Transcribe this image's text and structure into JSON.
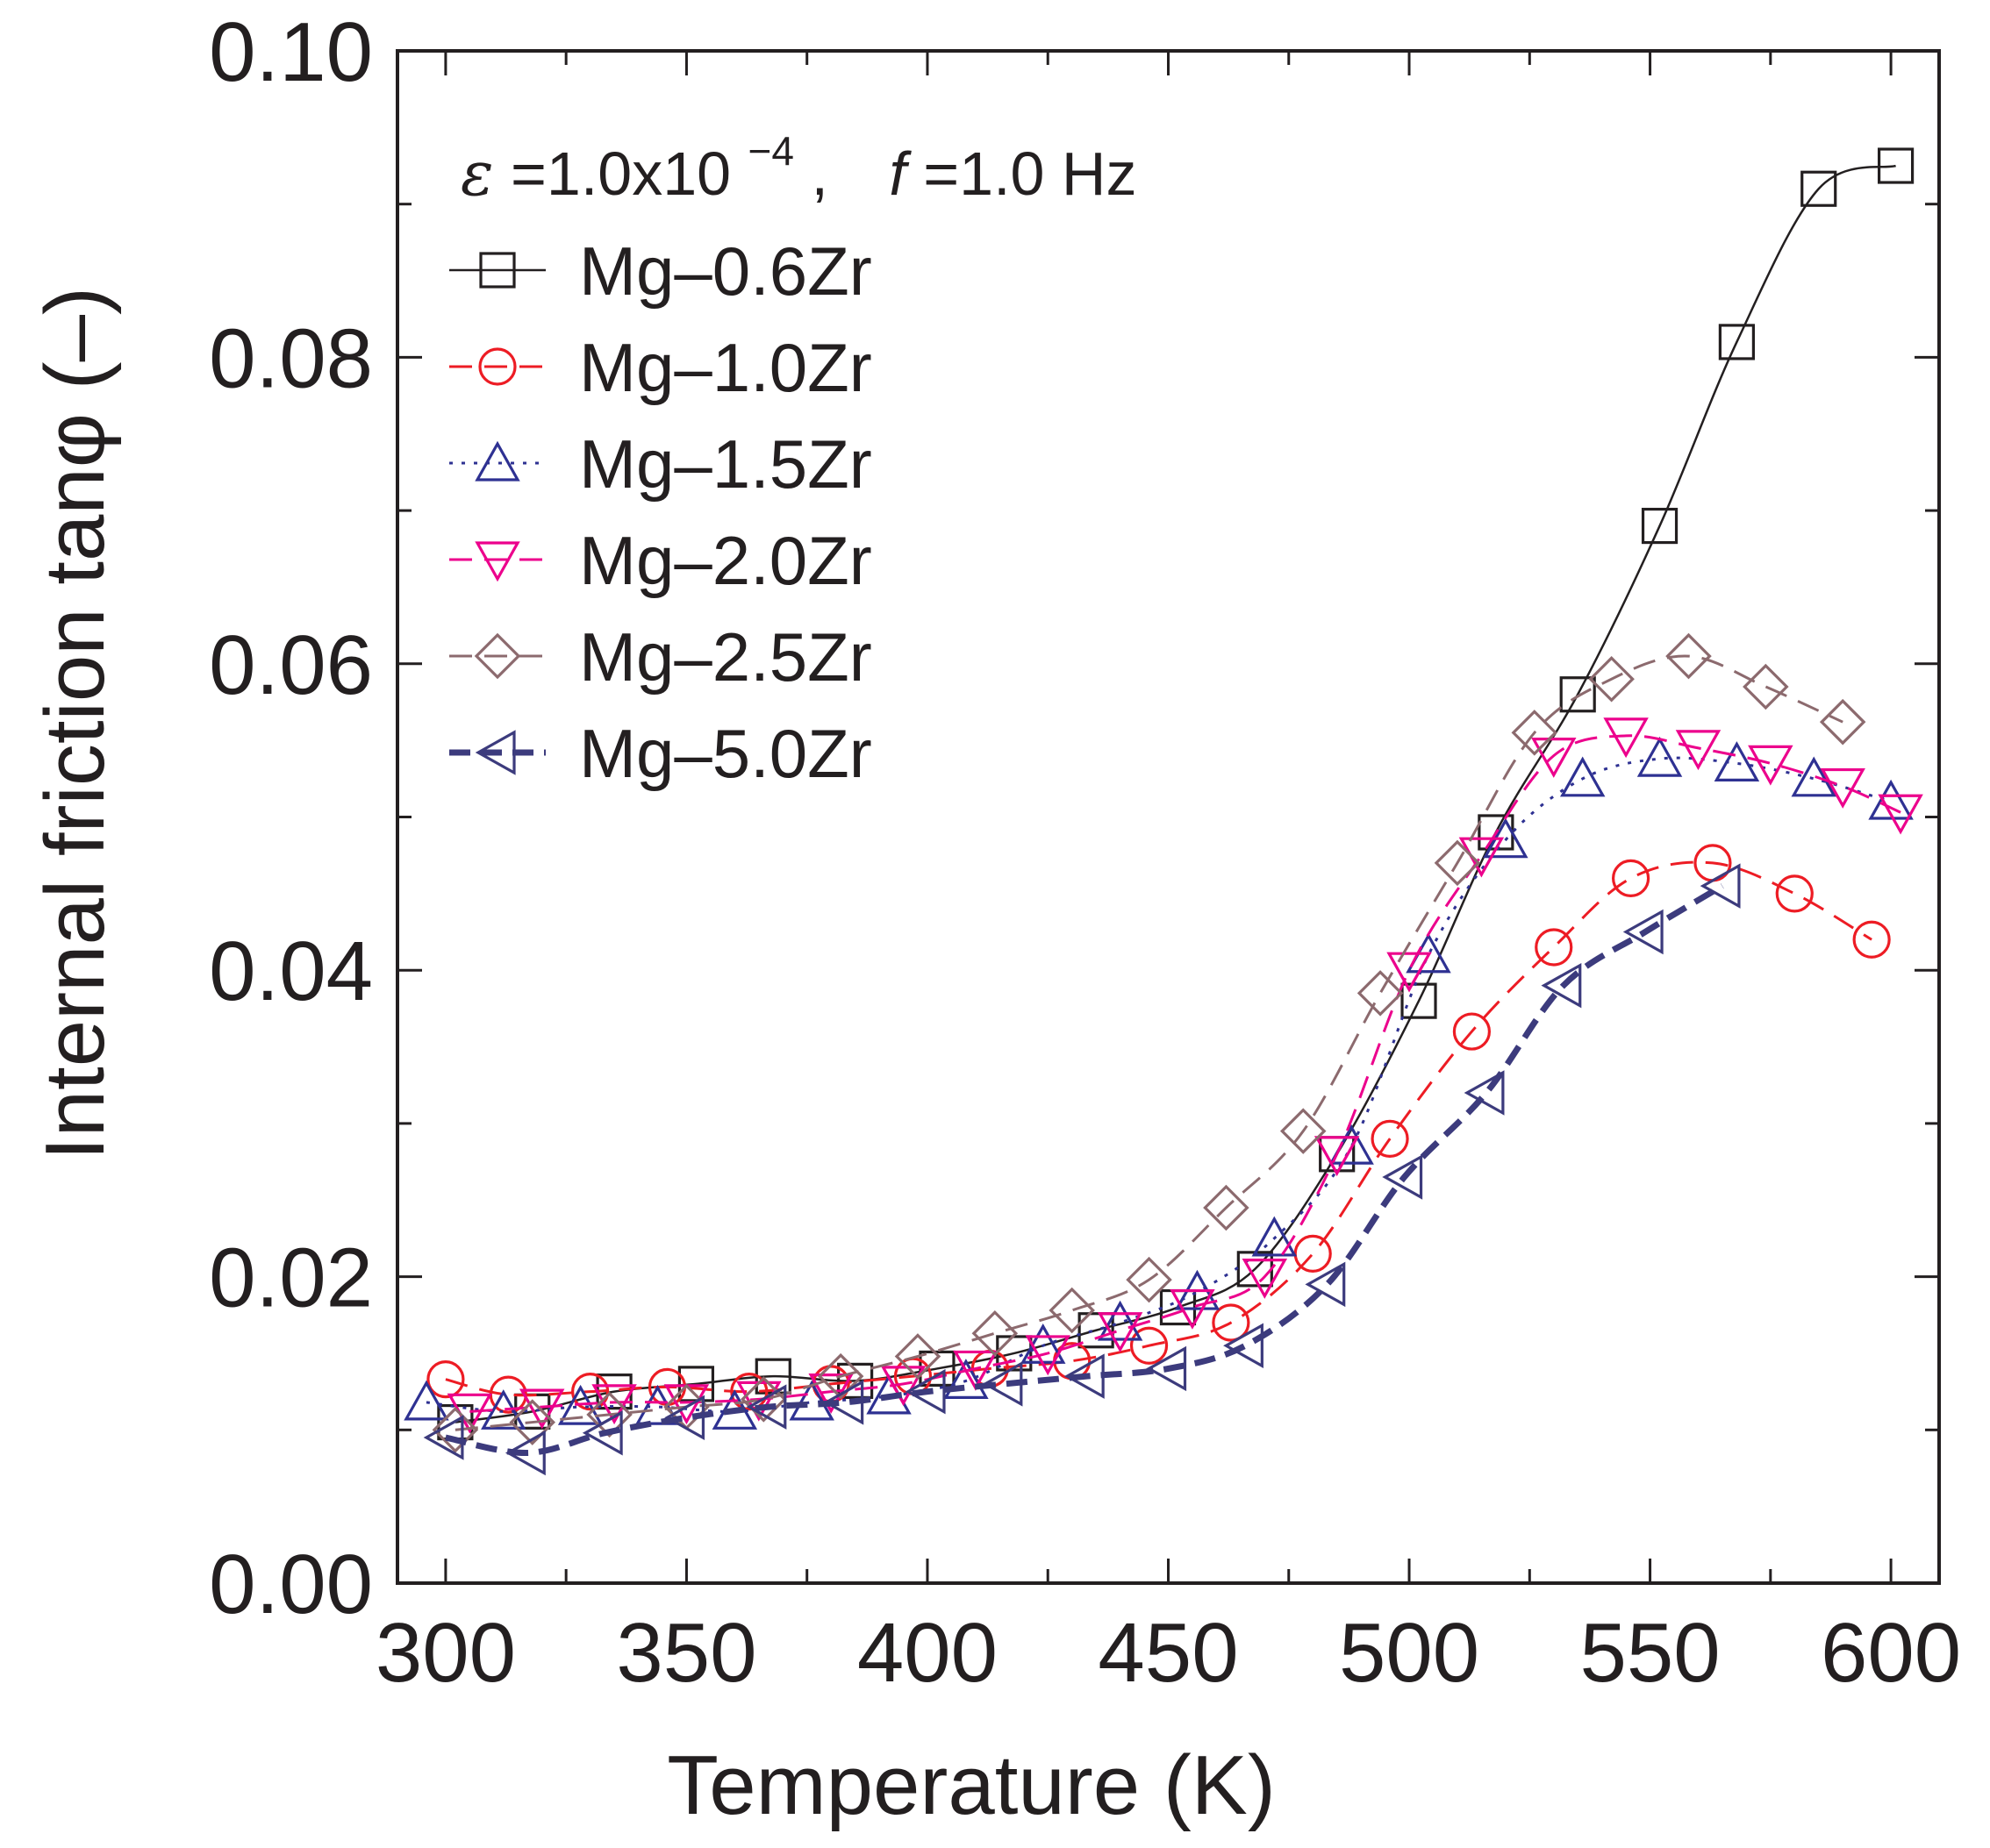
{
  "chart_data": {
    "type": "line",
    "title": "",
    "xlabel": "Temperature (K)",
    "ylabel": "Internal friction tanφ (–)",
    "xlim": [
      290,
      610
    ],
    "ylim": [
      0.0,
      0.1
    ],
    "xticks": [
      300,
      350,
      400,
      450,
      500,
      550,
      600
    ],
    "xtick_labels": [
      "300",
      "350",
      "400",
      "450",
      "500",
      "550",
      "600"
    ],
    "yticks": [
      0.0,
      0.02,
      0.04,
      0.06,
      0.08,
      0.1
    ],
    "ytick_labels": [
      "0.00",
      "0.02",
      "0.04",
      "0.06",
      "0.08",
      "0.10"
    ],
    "grid": false,
    "legend_position": "top-left",
    "annotation": {
      "epsilon_symbol": "ε",
      "epsilon_value": "=1.0x10",
      "epsilon_exp": "−4",
      "sep": ",",
      "f_symbol": "f",
      "f_value": "=1.0 Hz"
    },
    "series": [
      {
        "name": "Mg–0.6Zr",
        "color": "#231f20",
        "marker": "square",
        "line": "solid",
        "x": [
          302,
          318,
          335,
          352,
          368,
          385,
          402,
          418,
          435,
          452,
          468,
          485,
          502,
          518,
          535,
          552,
          568,
          585,
          601
        ],
        "y": [
          0.0105,
          0.0112,
          0.0125,
          0.013,
          0.0135,
          0.0132,
          0.014,
          0.015,
          0.0165,
          0.018,
          0.0205,
          0.028,
          0.038,
          0.049,
          0.058,
          0.069,
          0.081,
          0.091,
          0.0925
        ]
      },
      {
        "name": "Mg–1.0Zr",
        "color": "#ed1c24",
        "marker": "circle",
        "line": "dashed",
        "x": [
          300,
          313,
          330,
          346,
          363,
          380,
          397,
          413,
          430,
          446,
          463,
          480,
          496,
          513,
          530,
          546,
          563,
          580,
          596
        ],
        "y": [
          0.0133,
          0.0123,
          0.0125,
          0.0128,
          0.0125,
          0.013,
          0.0135,
          0.014,
          0.0145,
          0.0155,
          0.017,
          0.0215,
          0.029,
          0.036,
          0.0415,
          0.046,
          0.047,
          0.045,
          0.042
        ]
      },
      {
        "name": "Mg–1.5Zr",
        "color": "#2e3192",
        "marker": "triangle-up",
        "line": "dotted",
        "x": [
          296,
          312,
          328,
          344,
          360,
          376,
          392,
          408,
          424,
          440,
          456,
          472,
          488,
          504,
          520,
          536,
          552,
          568,
          584,
          600
        ],
        "y": [
          0.0118,
          0.0112,
          0.0115,
          0.0115,
          0.0112,
          0.0118,
          0.0122,
          0.0132,
          0.0155,
          0.017,
          0.019,
          0.0225,
          0.0285,
          0.041,
          0.0485,
          0.0525,
          0.0538,
          0.0535,
          0.0525,
          0.051
        ]
      },
      {
        "name": "Mg–2.0Zr",
        "color": "#ec008c",
        "marker": "triangle-down",
        "line": "dashed",
        "x": [
          305,
          320,
          335,
          350,
          365,
          380,
          395,
          410,
          425,
          440,
          455,
          470,
          485,
          500,
          515,
          530,
          545,
          560,
          575,
          590,
          602
        ],
        "y": [
          0.0112,
          0.0115,
          0.0118,
          0.0118,
          0.012,
          0.0125,
          0.013,
          0.014,
          0.015,
          0.0165,
          0.018,
          0.02,
          0.028,
          0.04,
          0.0475,
          0.054,
          0.0553,
          0.0545,
          0.0535,
          0.052,
          0.0503
        ]
      },
      {
        "name": "Mg–2.5Zr",
        "color": "#8c6a6e",
        "marker": "diamond",
        "line": "dashed",
        "x": [
          302,
          318,
          334,
          350,
          366,
          382,
          398,
          414,
          430,
          446,
          462,
          478,
          494,
          510,
          526,
          542,
          558,
          574,
          590
        ],
        "y": [
          0.01,
          0.0105,
          0.011,
          0.0115,
          0.012,
          0.0135,
          0.0148,
          0.0163,
          0.0178,
          0.0198,
          0.0245,
          0.0295,
          0.0385,
          0.047,
          0.0555,
          0.059,
          0.0605,
          0.0585,
          0.0562
        ]
      },
      {
        "name": "Mg–5.0Zr",
        "color": "#3c3b7d",
        "marker": "triangle-left",
        "line": "dash-bold",
        "x": [
          300,
          317,
          333,
          350,
          367,
          383,
          400,
          416,
          433,
          450,
          466,
          483,
          499,
          516,
          532,
          549,
          565
        ],
        "y": [
          0.0095,
          0.0085,
          0.0098,
          0.0108,
          0.0115,
          0.0118,
          0.0125,
          0.013,
          0.0135,
          0.014,
          0.0155,
          0.0195,
          0.0265,
          0.032,
          0.039,
          0.0425,
          0.0455
        ]
      }
    ]
  }
}
